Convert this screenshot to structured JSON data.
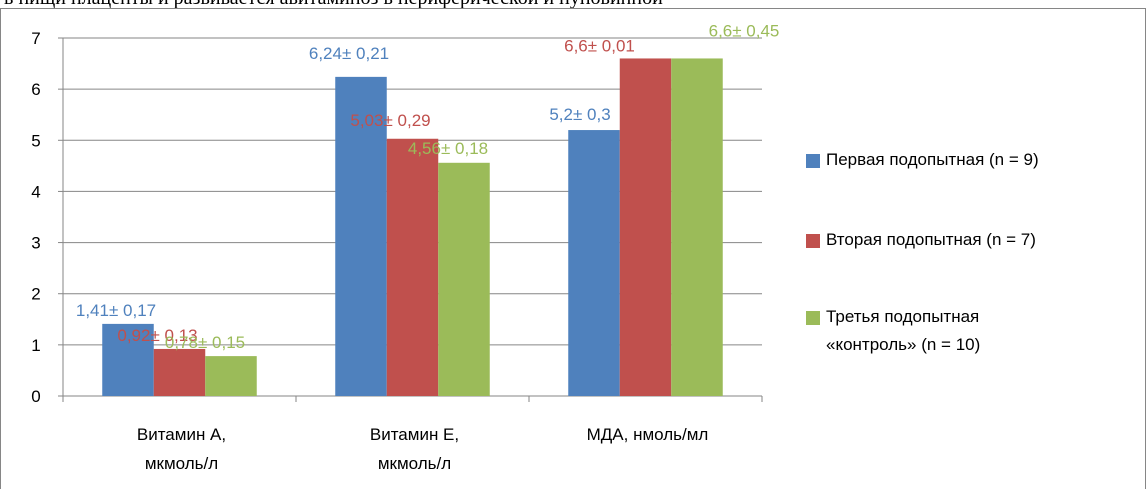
{
  "header": {
    "top_text": "в пищи плаценты и развивается авитаминоз в периферической и пуповинной"
  },
  "chart_data": {
    "type": "bar",
    "categories": [
      "Витамин А, мкмоль/л",
      "Витамин Е, мкмоль/л",
      "МДА, нмоль/мл"
    ],
    "category_lines": [
      [
        "Витамин А,",
        "мкмоль/л"
      ],
      [
        "Витамин Е,",
        "мкмоль/л"
      ],
      [
        "МДА, нмоль/мл"
      ]
    ],
    "ylim": [
      0,
      7
    ],
    "yticks": [
      "0",
      "1",
      "2",
      "3",
      "4",
      "5",
      "6",
      "7"
    ],
    "grid": true,
    "legend_position": "right",
    "series": [
      {
        "name": "Первая подопытная  (n = 9)",
        "name_lines": [
          "Первая подопытная  (n = 9)"
        ],
        "color": "#4F81BD",
        "label_color": "#4F81BD",
        "values": [
          1.41,
          6.24,
          5.2
        ],
        "labels": [
          "1,41± 0,17",
          "6,24± 0,21",
          "5,2± 0,3"
        ]
      },
      {
        "name": "Вторая подопытная  (n = 7)",
        "name_lines": [
          "Вторая подопытная  (n = 7)"
        ],
        "color": "#C0504D",
        "label_color": "#C0504D",
        "values": [
          0.92,
          5.03,
          6.6
        ],
        "labels": [
          "0,92± 0,13",
          "5,03± 0,29",
          "6,6± 0,01"
        ]
      },
      {
        "name": "Третья подопытная «контроль»  (n = 10)",
        "name_lines": [
          "Третья подопытная",
          "«контроль»   (n = 10)"
        ],
        "color": "#9BBB59",
        "label_color": "#9BBB59",
        "values": [
          0.78,
          4.56,
          6.6
        ],
        "labels": [
          "0,78± 0,15",
          "4,56± 0,18",
          "6,6± 0,45"
        ]
      }
    ]
  }
}
